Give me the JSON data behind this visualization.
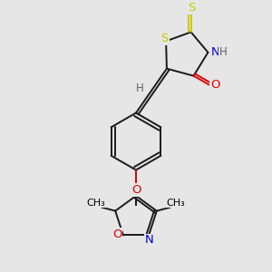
{
  "bg_color": "#e6e6e6",
  "atom_colors": {
    "S": "#c8c800",
    "N": "#0000dd",
    "O": "#dd0000",
    "C": "#000000",
    "H": "#606060"
  },
  "bond_color": "#1a1a1a",
  "lw": 1.4,
  "fs": 9.5
}
